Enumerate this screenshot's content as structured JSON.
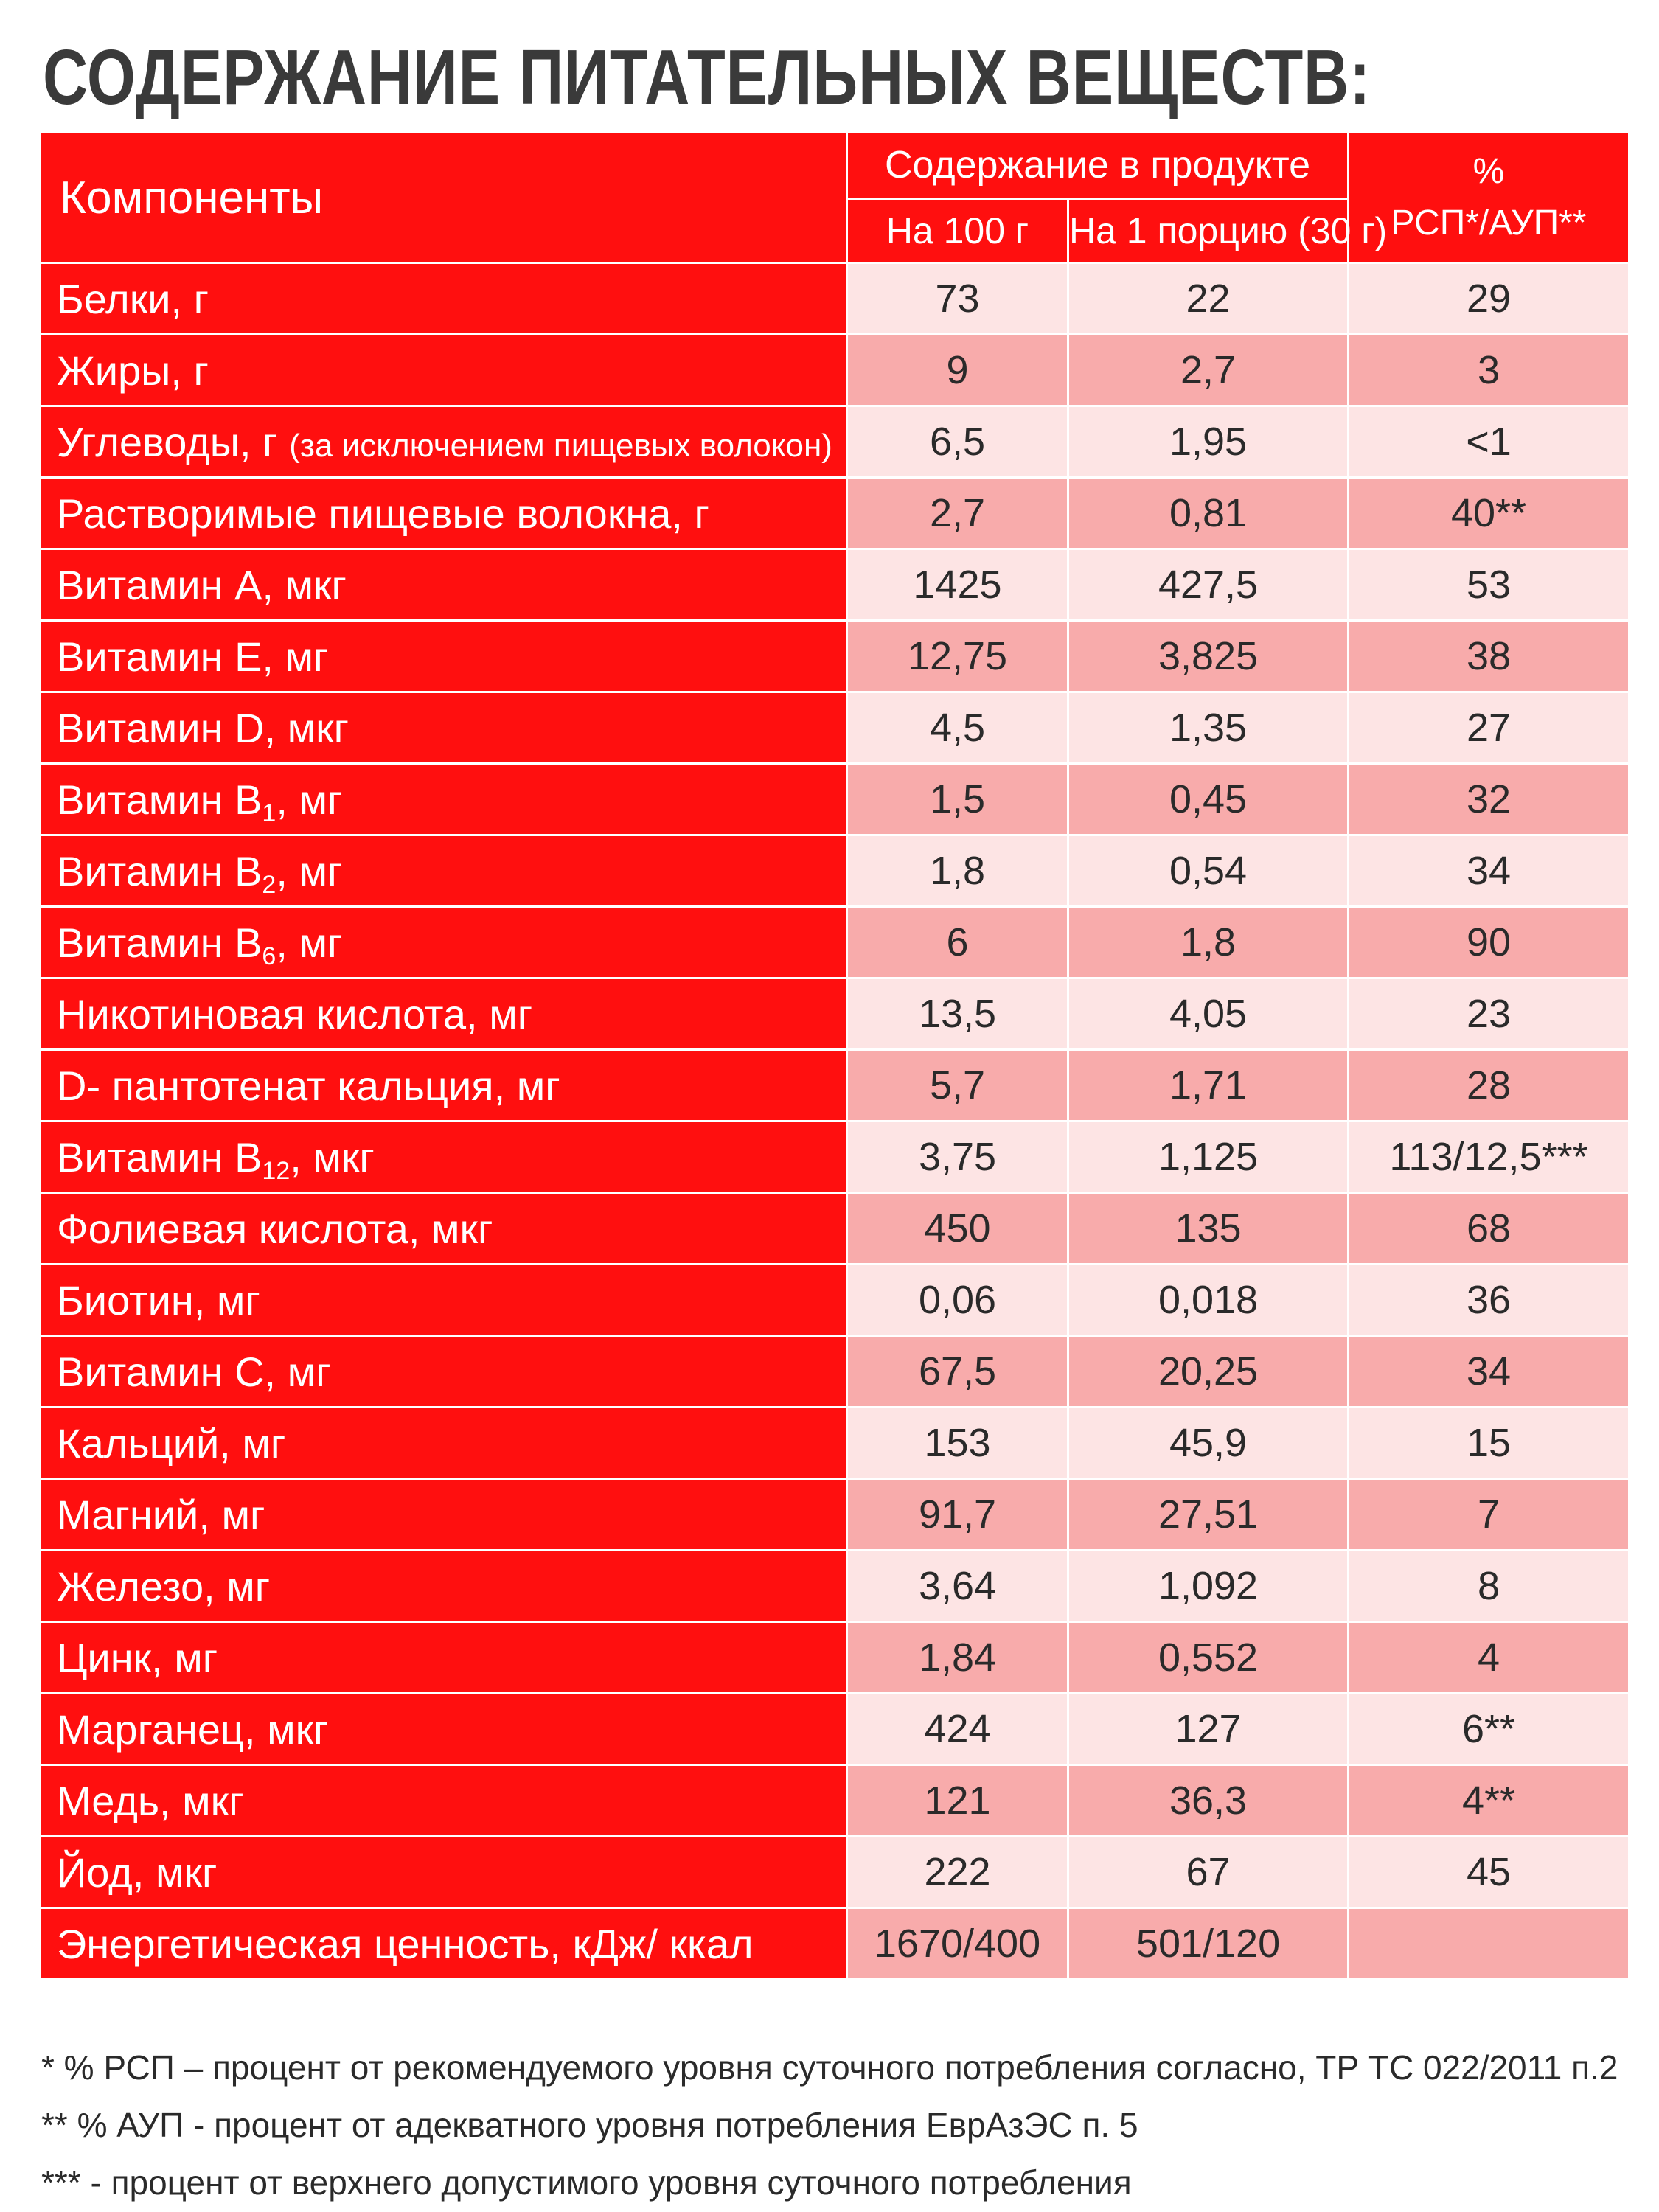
{
  "title": "СОДЕРЖАНИЕ ПИТАТЕЛЬНЫХ ВЕЩЕСТВ:",
  "table": {
    "header": {
      "components": "Компоненты",
      "content": "Содержание в продукте",
      "per100": "На 100 г",
      "perServing": "На 1 порцию (30 г)",
      "pct_line1": "%",
      "pct_line2": "РСП*/АУП**"
    },
    "rows": [
      {
        "name": "Белки, г",
        "per100": "73",
        "perServing": "22",
        "pct": "29"
      },
      {
        "name": "Жиры, г",
        "per100": "9",
        "perServing": "2,7",
        "pct": "3"
      },
      {
        "name": "Углеводы, г",
        "note": "(за исключением пищевых волокон)",
        "per100": "6,5",
        "perServing": "1,95",
        "pct": "<1"
      },
      {
        "name": "Растворимые пищевые волокна, г",
        "per100": "2,7",
        "perServing": "0,81",
        "pct": "40**"
      },
      {
        "name": "Витамин А, мкг",
        "per100": "1425",
        "perServing": "427,5",
        "pct": "53"
      },
      {
        "name": "Витамин Е, мг",
        "per100": "12,75",
        "perServing": "3,825",
        "pct": "38"
      },
      {
        "name": "Витамин D, мкг",
        "per100": "4,5",
        "perServing": "1,35",
        "pct": "27"
      },
      {
        "name": "Витамин B",
        "sub": "1",
        "suffix": ", мг",
        "per100": "1,5",
        "perServing": "0,45",
        "pct": "32"
      },
      {
        "name": "Витамин B",
        "sub": "2",
        "suffix": ", мг",
        "per100": "1,8",
        "perServing": "0,54",
        "pct": "34"
      },
      {
        "name": "Витамин B",
        "sub": "6",
        "suffix": ", мг",
        "per100": "6",
        "perServing": "1,8",
        "pct": "90"
      },
      {
        "name": "Никотиновая кислота, мг",
        "per100": "13,5",
        "perServing": "4,05",
        "pct": "23"
      },
      {
        "name": "D- пантотенат кальция, мг",
        "per100": "5,7",
        "perServing": "1,71",
        "pct": "28"
      },
      {
        "name": "Витамин B",
        "sub": "12",
        "suffix": ", мкг",
        "per100": "3,75",
        "perServing": "1,125",
        "pct": "113/12,5***"
      },
      {
        "name": "Фолиевая кислота, мкг",
        "per100": "450",
        "perServing": "135",
        "pct": "68"
      },
      {
        "name": "Биотин, мг",
        "per100": "0,06",
        "perServing": "0,018",
        "pct": "36"
      },
      {
        "name": "Витамин С, мг",
        "per100": "67,5",
        "perServing": "20,25",
        "pct": "34"
      },
      {
        "name": "Кальций, мг",
        "per100": "153",
        "perServing": "45,9",
        "pct": "15"
      },
      {
        "name": "Магний, мг",
        "per100": "91,7",
        "perServing": "27,51",
        "pct": "7"
      },
      {
        "name": "Железо, мг",
        "per100": "3,64",
        "perServing": "1,092",
        "pct": "8"
      },
      {
        "name": "Цинк, мг",
        "per100": "1,84",
        "perServing": "0,552",
        "pct": "4"
      },
      {
        "name": "Марганец, мкг",
        "per100": "424",
        "perServing": "127",
        "pct": "6**"
      },
      {
        "name": "Медь, мкг",
        "per100": "121",
        "perServing": "36,3",
        "pct": "4**"
      },
      {
        "name": "Йод, мкг",
        "per100": "222",
        "perServing": "67",
        "pct": "45"
      },
      {
        "name": "Энергетическая ценность, кДж/ ккал",
        "per100": "1670/400",
        "perServing": "501/120",
        "pct": ""
      }
    ]
  },
  "footnotes": [
    "* % РСП – процент от рекомендуемого уровня суточного потребления согласно, ТР ТС 022/2011 п.2",
    "** % АУП - процент от адекватного уровня потребления ЕврАзЭС п. 5",
    "*** - процент от верхнего допустимого уровня суточного потребления"
  ],
  "colors": {
    "red": "#ff0f0f",
    "light": "#fde4e4",
    "dark": "#f8abab"
  }
}
